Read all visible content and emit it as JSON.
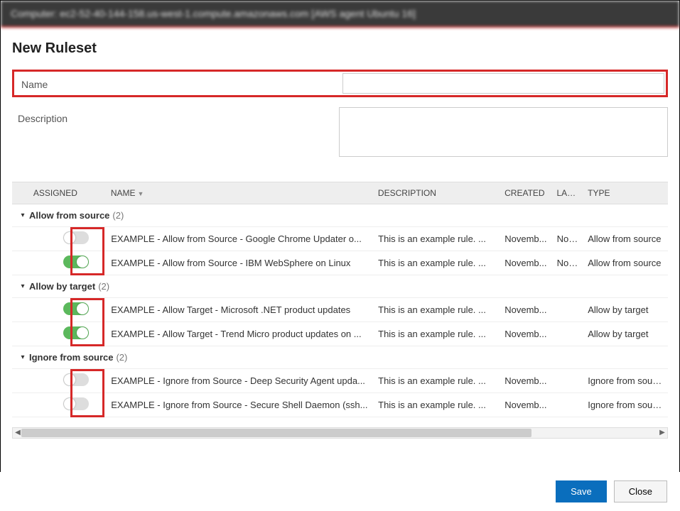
{
  "titlebar": "Computer: ec2-52-40-144-158.us-west-1.compute.amazonaws.com [AWS agent Ubuntu 16]",
  "page_title": "New Ruleset",
  "form": {
    "name_label": "Name",
    "name_value": "",
    "desc_label": "Description",
    "desc_value": ""
  },
  "columns": {
    "assigned": "ASSIGNED",
    "name": "NAME",
    "description": "DESCRIPTION",
    "created": "CREATED",
    "last": "LAS...",
    "type": "TYPE"
  },
  "groups": [
    {
      "title": "Allow from source",
      "count": "(2)",
      "rows": [
        {
          "assigned": false,
          "name": "EXAMPLE - Allow from Source - Google Chrome Updater o...",
          "desc": "This is an example rule. ...",
          "created": "Novemb...",
          "last": "Nov...",
          "type": "Allow from source"
        },
        {
          "assigned": true,
          "name": "EXAMPLE - Allow from Source - IBM WebSphere on Linux",
          "desc": "This is an example rule. ...",
          "created": "Novemb...",
          "last": "Nov...",
          "type": "Allow from source"
        }
      ],
      "highlight_toggles": true
    },
    {
      "title": "Allow by target",
      "count": "(2)",
      "rows": [
        {
          "assigned": true,
          "name": "EXAMPLE - Allow Target - Microsoft .NET product updates",
          "desc": "This is an example rule. ...",
          "created": "Novemb...",
          "last": "",
          "type": "Allow by target"
        },
        {
          "assigned": true,
          "name": "EXAMPLE - Allow Target - Trend Micro product updates on ...",
          "desc": "This is an example rule. ...",
          "created": "Novemb...",
          "last": "",
          "type": "Allow by target"
        }
      ],
      "highlight_toggles": true
    },
    {
      "title": "Ignore from source",
      "count": "(2)",
      "rows": [
        {
          "assigned": false,
          "name": "EXAMPLE - Ignore from Source - Deep Security Agent upda...",
          "desc": "This is an example rule. ...",
          "created": "Novemb...",
          "last": "",
          "type": "Ignore from source"
        },
        {
          "assigned": false,
          "name": "EXAMPLE - Ignore from Source - Secure Shell Daemon (ssh...",
          "desc": "This is an example rule. ...",
          "created": "Novemb...",
          "last": "",
          "type": "Ignore from source"
        }
      ],
      "highlight_toggles": true
    }
  ],
  "buttons": {
    "save": "Save",
    "close": "Close"
  },
  "colors": {
    "accent": "#d62828",
    "primary": "#0a6ebd",
    "toggle_on": "#5cb85c"
  }
}
